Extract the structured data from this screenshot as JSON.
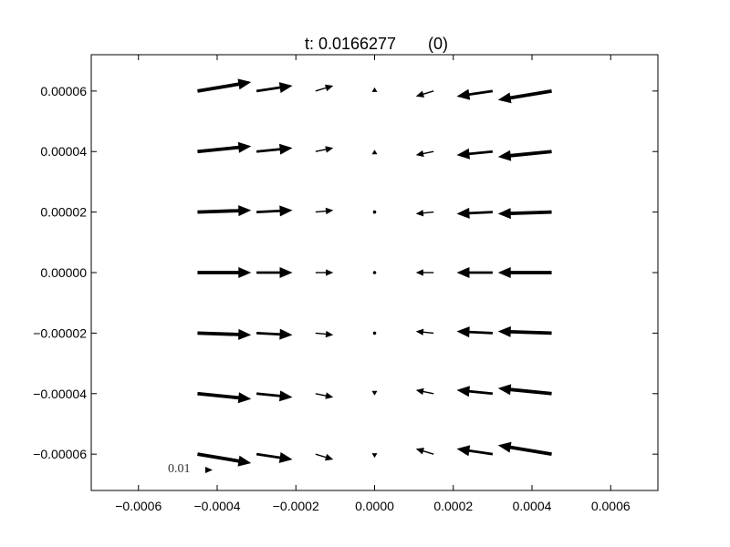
{
  "chart_data": {
    "type": "quiver",
    "title": "t: 0.0166277",
    "title_suffix": "(0)",
    "xlabel": "",
    "ylabel": "",
    "xlim": [
      -0.00072,
      0.00072
    ],
    "ylim": [
      -7.2e-05,
      7.2e-05
    ],
    "grid": false,
    "xticks": [
      -0.0006,
      -0.0004,
      -0.0002,
      0.0,
      0.0002,
      0.0004,
      0.0006
    ],
    "xtick_labels": [
      "−0.0006",
      "−0.0004",
      "−0.0002",
      "0.0000",
      "0.0002",
      "0.0004",
      "0.0006"
    ],
    "yticks": [
      6e-05,
      4e-05,
      2e-05,
      0.0,
      -2e-05,
      -4e-05,
      -6e-05
    ],
    "ytick_labels": [
      "0.00006",
      "0.00004",
      "0.00002",
      "0.00000",
      "−0.00002",
      "−0.00004",
      "−0.00006"
    ],
    "x": [
      -0.00045,
      -0.0003,
      -0.00015,
      0.0,
      0.00015,
      0.0003,
      0.00045
    ],
    "y": [
      6e-05,
      4e-05,
      2e-05,
      0.0,
      -2e-05,
      -4e-05,
      -6e-05
    ],
    "u": [
      [
        0.0109,
        0.0073,
        0.0036,
        0.0,
        -0.0036,
        -0.0073,
        -0.0109
      ],
      [
        0.0109,
        0.0073,
        0.0036,
        0.0,
        -0.0036,
        -0.0073,
        -0.0109
      ],
      [
        0.0109,
        0.0073,
        0.0036,
        0.0,
        -0.0036,
        -0.0073,
        -0.0109
      ],
      [
        0.0109,
        0.0073,
        0.0036,
        0.0,
        -0.0036,
        -0.0073,
        -0.0109
      ],
      [
        0.0109,
        0.0073,
        0.0036,
        0.0,
        -0.0036,
        -0.0073,
        -0.0109
      ],
      [
        0.0109,
        0.0073,
        0.0036,
        0.0,
        -0.0036,
        -0.0073,
        -0.0109
      ],
      [
        0.0109,
        0.0073,
        0.0036,
        0.0,
        -0.0036,
        -0.0073,
        -0.0109
      ]
    ],
    "v": [
      [
        0.00182,
        0.00109,
        0.00109,
        0.00073,
        -0.00109,
        -0.00109,
        -0.00182
      ],
      [
        0.00109,
        0.00073,
        0.00073,
        0.00036,
        -0.00073,
        -0.00073,
        -0.00109
      ],
      [
        0.00036,
        0.00036,
        0.00036,
        0.0,
        -0.00036,
        -0.00036,
        -0.00036
      ],
      [
        0.0,
        0.0,
        0.0,
        0.0,
        0.0,
        0.0,
        0.0
      ],
      [
        -0.00036,
        -0.00036,
        -0.00036,
        0.0,
        0.00036,
        0.00036,
        0.00036
      ],
      [
        -0.00109,
        -0.00073,
        -0.00073,
        -0.00036,
        0.00073,
        0.00073,
        0.00109
      ],
      [
        -0.00182,
        -0.00109,
        -0.00109,
        -0.00073,
        0.00109,
        0.00109,
        0.00182
      ]
    ],
    "scale_key": {
      "label": "0.01",
      "value": 0.01
    }
  }
}
